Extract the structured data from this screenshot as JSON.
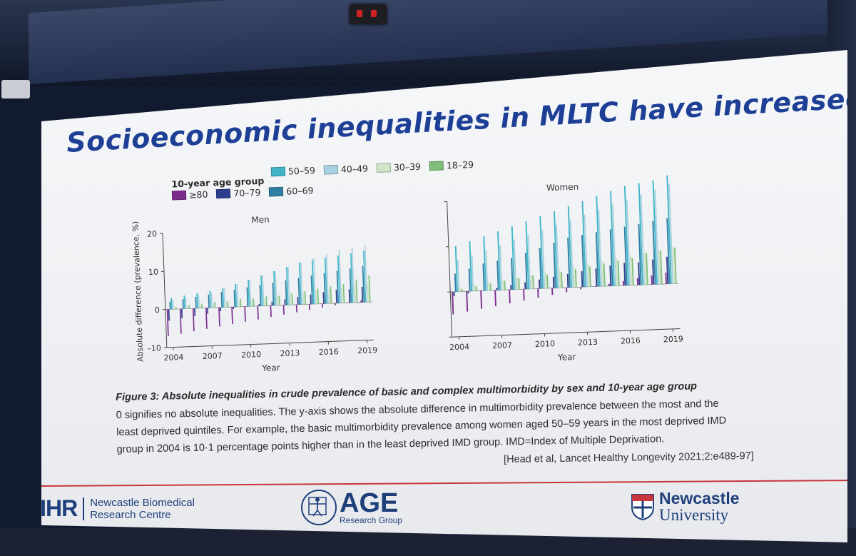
{
  "slide": {
    "title": "Socioeconomic inequalities in MLTC have increased over time",
    "legend_title": "10-year age group",
    "legend": [
      {
        "label": "≥80",
        "color": "#7b2d8e"
      },
      {
        "label": "70–79",
        "color": "#2d3f8f"
      },
      {
        "label": "60–69",
        "color": "#2f7fa3"
      },
      {
        "label": "50–59",
        "color": "#3fb6c8"
      },
      {
        "label": "40–49",
        "color": "#a8d1e0"
      },
      {
        "label": "30–39",
        "color": "#cfe3c5"
      },
      {
        "label": "18–29",
        "color": "#7fbf7a"
      }
    ],
    "caption_title_prefix": "Figure 3:",
    "caption_title": " Absolute inequalities in crude prevalence of basic and complex multimorbidity by sex and 10-year age group",
    "caption_body": "0 signifies no absolute inequalities. The y-axis shows the absolute difference in multimorbidity prevalence between the most and the least deprived quintiles. For example, the basic multimorbidity prevalence among women aged 50–59 years in the most deprived IMD group in 2004 is 10·1 percentage points higher than in the least deprived IMD group. IMD=Index of Multiple Deprivation.",
    "citation": "[Head et al, Lancet Healthy Longevity 2021;2:e489-97]"
  },
  "footer": {
    "nihr_mark": "NIHR",
    "nihr_line1": "Newcastle Biomedical",
    "nihr_line2": "Research Centre",
    "age_mark": "AGE",
    "age_sub": "Research Group",
    "ncl_line1": "Newcastle",
    "ncl_line2": "University"
  },
  "chart_data": [
    {
      "type": "bar",
      "title": "Men",
      "xlabel": "Year",
      "ylabel": "Absolute difference (prevalence, %)",
      "ylim": [
        -10,
        20
      ],
      "yticks": [
        -10,
        0,
        10,
        20
      ],
      "xtick_labels": [
        "2004",
        "2007",
        "2010",
        "2013",
        "2016",
        "2019"
      ],
      "categories": [
        "2004",
        "2005",
        "2006",
        "2007",
        "2008",
        "2009",
        "2010",
        "2011",
        "2012",
        "2013",
        "2014",
        "2015",
        "2016",
        "2017",
        "2018",
        "2019"
      ],
      "series": [
        {
          "name": "≥80",
          "values": [
            -7,
            -6.5,
            -6,
            -5.5,
            -5,
            -4.5,
            -4,
            -3.5,
            -3,
            -2.5,
            -2,
            -1.5,
            -1,
            -0.5,
            0,
            0.5
          ]
        },
        {
          "name": "70–79",
          "values": [
            -3,
            -2.5,
            -2,
            -1.5,
            -1,
            -0.5,
            0,
            0.5,
            1,
            1.5,
            2,
            2.5,
            3,
            3.5,
            3.5,
            4
          ]
        },
        {
          "name": "60–69",
          "values": [
            2,
            2.5,
            3,
            3.5,
            4,
            4.5,
            5,
            5.5,
            6,
            6.5,
            7,
            7.5,
            8,
            8.5,
            9,
            9.5
          ]
        },
        {
          "name": "50–59",
          "values": [
            3,
            3.5,
            4,
            4.5,
            5,
            6,
            7,
            8,
            9,
            10,
            11,
            11.5,
            12,
            12.5,
            13,
            13.5
          ]
        },
        {
          "name": "40–49",
          "values": [
            2.5,
            3,
            3.5,
            4,
            5,
            6,
            7,
            8,
            9,
            10,
            11,
            12,
            13,
            14,
            14.5,
            15
          ]
        },
        {
          "name": "30–39",
          "values": [
            0.5,
            0.5,
            1,
            1,
            1.5,
            1.5,
            2,
            2,
            2.5,
            3,
            3,
            3.5,
            4,
            4,
            4.5,
            5
          ]
        },
        {
          "name": "18–29",
          "values": [
            0.5,
            1,
            1,
            1.5,
            1.5,
            2,
            2,
            2.5,
            2.5,
            3,
            3.5,
            4,
            4.5,
            5,
            6,
            7
          ]
        }
      ]
    },
    {
      "type": "bar",
      "title": "Women",
      "xlabel": "Year",
      "ylim": [
        -10,
        20
      ],
      "yticks": [
        -10,
        0,
        10,
        20
      ],
      "xtick_labels": [
        "2004",
        "2007",
        "2010",
        "2013",
        "2016",
        "2019"
      ],
      "categories": [
        "2004",
        "2005",
        "2006",
        "2007",
        "2008",
        "2009",
        "2010",
        "2011",
        "2012",
        "2013",
        "2014",
        "2015",
        "2016",
        "2017",
        "2018",
        "2019"
      ],
      "series": [
        {
          "name": "≥80",
          "values": [
            -5,
            -4.5,
            -4,
            -3.5,
            -3,
            -2.5,
            -2,
            -1.5,
            -1,
            -0.5,
            0,
            0.5,
            1,
            1.5,
            2,
            2.5
          ]
        },
        {
          "name": "70–79",
          "values": [
            -1,
            -0.5,
            0,
            0.5,
            1,
            1.5,
            2,
            2.5,
            3,
            3.5,
            4,
            4.5,
            5,
            5,
            5.5,
            6
          ]
        },
        {
          "name": "60–69",
          "values": [
            4,
            5,
            6,
            6.5,
            7,
            8,
            9,
            10,
            11,
            11.5,
            12,
            12.5,
            13,
            13.5,
            14,
            14.5
          ]
        },
        {
          "name": "50–59",
          "values": [
            10.1,
            11,
            12,
            13,
            14,
            15,
            16,
            17,
            18,
            19,
            20,
            21,
            22,
            22.5,
            23,
            24
          ]
        },
        {
          "name": "40–49",
          "values": [
            7,
            8,
            9,
            10,
            11,
            12,
            13,
            14,
            15,
            16,
            17,
            18,
            19,
            20,
            21,
            22
          ]
        },
        {
          "name": "30–39",
          "values": [
            1,
            1.5,
            2,
            2,
            2.5,
            3,
            3.5,
            4,
            4.5,
            5,
            5.5,
            6,
            6.5,
            7,
            7.5,
            8
          ]
        },
        {
          "name": "18–29",
          "values": [
            0.5,
            1,
            1.5,
            2,
            2.5,
            3,
            3,
            3.5,
            4,
            4.5,
            5,
            5.5,
            6,
            7,
            7.5,
            8
          ]
        }
      ]
    }
  ]
}
